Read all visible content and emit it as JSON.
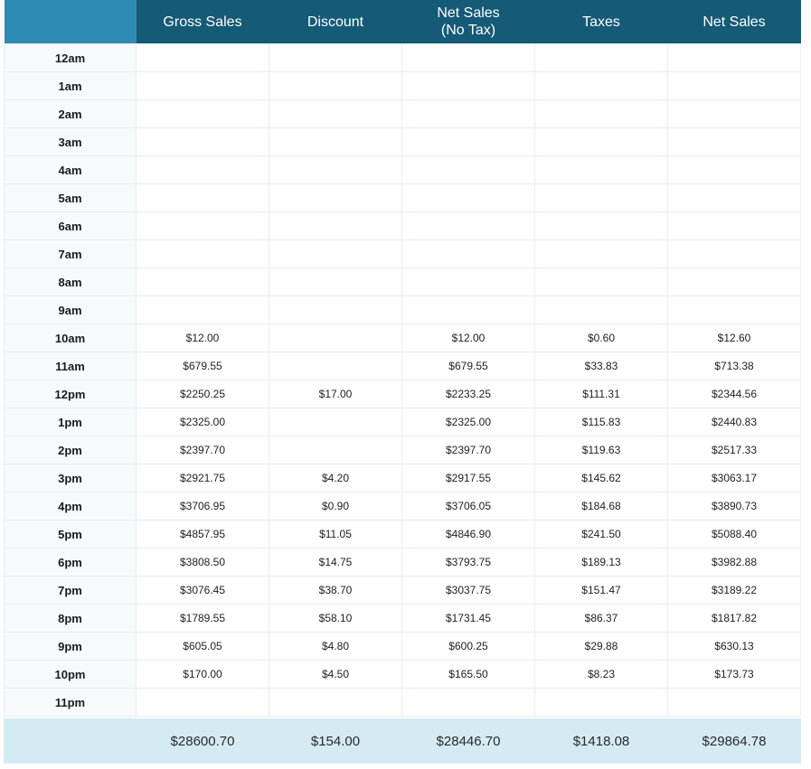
{
  "headers": [
    "",
    "Gross Sales",
    "Discount",
    "Net Sales\n(No Tax)",
    "Taxes",
    "Net Sales"
  ],
  "rows": [
    {
      "hour": "12am",
      "gross": "",
      "discount": "",
      "net_no_tax": "",
      "taxes": "",
      "net": ""
    },
    {
      "hour": "1am",
      "gross": "",
      "discount": "",
      "net_no_tax": "",
      "taxes": "",
      "net": ""
    },
    {
      "hour": "2am",
      "gross": "",
      "discount": "",
      "net_no_tax": "",
      "taxes": "",
      "net": ""
    },
    {
      "hour": "3am",
      "gross": "",
      "discount": "",
      "net_no_tax": "",
      "taxes": "",
      "net": ""
    },
    {
      "hour": "4am",
      "gross": "",
      "discount": "",
      "net_no_tax": "",
      "taxes": "",
      "net": ""
    },
    {
      "hour": "5am",
      "gross": "",
      "discount": "",
      "net_no_tax": "",
      "taxes": "",
      "net": ""
    },
    {
      "hour": "6am",
      "gross": "",
      "discount": "",
      "net_no_tax": "",
      "taxes": "",
      "net": ""
    },
    {
      "hour": "7am",
      "gross": "",
      "discount": "",
      "net_no_tax": "",
      "taxes": "",
      "net": ""
    },
    {
      "hour": "8am",
      "gross": "",
      "discount": "",
      "net_no_tax": "",
      "taxes": "",
      "net": ""
    },
    {
      "hour": "9am",
      "gross": "",
      "discount": "",
      "net_no_tax": "",
      "taxes": "",
      "net": ""
    },
    {
      "hour": "10am",
      "gross": "$12.00",
      "discount": "",
      "net_no_tax": "$12.00",
      "taxes": "$0.60",
      "net": "$12.60"
    },
    {
      "hour": "11am",
      "gross": "$679.55",
      "discount": "",
      "net_no_tax": "$679.55",
      "taxes": "$33.83",
      "net": "$713.38"
    },
    {
      "hour": "12pm",
      "gross": "$2250.25",
      "discount": "$17.00",
      "net_no_tax": "$2233.25",
      "taxes": "$111.31",
      "net": "$2344.56"
    },
    {
      "hour": "1pm",
      "gross": "$2325.00",
      "discount": "",
      "net_no_tax": "$2325.00",
      "taxes": "$115.83",
      "net": "$2440.83"
    },
    {
      "hour": "2pm",
      "gross": "$2397.70",
      "discount": "",
      "net_no_tax": "$2397.70",
      "taxes": "$119.63",
      "net": "$2517.33"
    },
    {
      "hour": "3pm",
      "gross": "$2921.75",
      "discount": "$4.20",
      "net_no_tax": "$2917.55",
      "taxes": "$145.62",
      "net": "$3063.17"
    },
    {
      "hour": "4pm",
      "gross": "$3706.95",
      "discount": "$0.90",
      "net_no_tax": "$3706.05",
      "taxes": "$184.68",
      "net": "$3890.73"
    },
    {
      "hour": "5pm",
      "gross": "$4857.95",
      "discount": "$11.05",
      "net_no_tax": "$4846.90",
      "taxes": "$241.50",
      "net": "$5088.40"
    },
    {
      "hour": "6pm",
      "gross": "$3808.50",
      "discount": "$14.75",
      "net_no_tax": "$3793.75",
      "taxes": "$189.13",
      "net": "$3982.88"
    },
    {
      "hour": "7pm",
      "gross": "$3076.45",
      "discount": "$38.70",
      "net_no_tax": "$3037.75",
      "taxes": "$151.47",
      "net": "$3189.22"
    },
    {
      "hour": "8pm",
      "gross": "$1789.55",
      "discount": "$58.10",
      "net_no_tax": "$1731.45",
      "taxes": "$86.37",
      "net": "$1817.82"
    },
    {
      "hour": "9pm",
      "gross": "$605.05",
      "discount": "$4.80",
      "net_no_tax": "$600.25",
      "taxes": "$29.88",
      "net": "$630.13"
    },
    {
      "hour": "10pm",
      "gross": "$170.00",
      "discount": "$4.50",
      "net_no_tax": "$165.50",
      "taxes": "$8.23",
      "net": "$173.73"
    },
    {
      "hour": "11pm",
      "gross": "",
      "discount": "",
      "net_no_tax": "",
      "taxes": "",
      "net": ""
    }
  ],
  "totals": {
    "gross": "$28600.70",
    "discount": "$154.00",
    "net_no_tax": "$28446.70",
    "taxes": "$1418.08",
    "net": "$29864.78"
  },
  "colors": {
    "header": "#155a76",
    "header_hour": "#2d8cb3",
    "total_row": "#d5ebf3"
  }
}
